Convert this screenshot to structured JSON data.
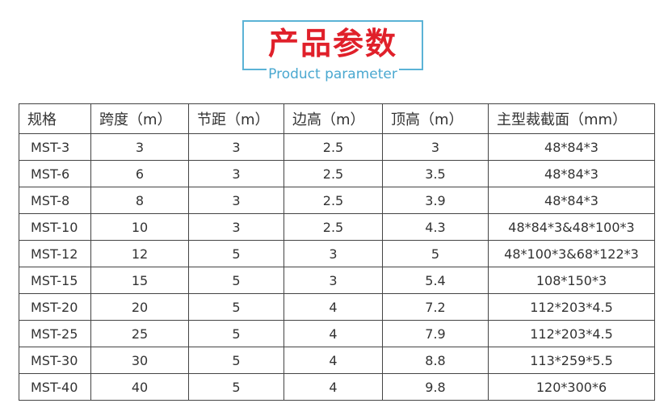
{
  "title": "产品参数",
  "subtitle": "Product parameter",
  "table": {
    "headers": [
      "规格",
      "跨度（m）",
      "节距（m）",
      "边高（m）",
      "顶高（m）",
      "主型裁截面（mm）"
    ],
    "rows": [
      [
        "MST-3",
        "3",
        "3",
        "2.5",
        "3",
        "48*84*3"
      ],
      [
        "MST-6",
        "6",
        "3",
        "2.5",
        "3.5",
        "48*84*3"
      ],
      [
        "MST-8",
        "8",
        "3",
        "2.5",
        "3.9",
        "48*84*3"
      ],
      [
        "MST-10",
        "10",
        "3",
        "2.5",
        "4.3",
        "48*84*3&48*100*3"
      ],
      [
        "MST-12",
        "12",
        "5",
        "3",
        "5",
        "48*100*3&68*122*3"
      ],
      [
        "MST-15",
        "15",
        "5",
        "3",
        "5.4",
        "108*150*3"
      ],
      [
        "MST-20",
        "20",
        "5",
        "4",
        "7.2",
        "112*203*4.5"
      ],
      [
        "MST-25",
        "25",
        "5",
        "4",
        "7.9",
        "112*203*4.5"
      ],
      [
        "MST-30",
        "30",
        "5",
        "4",
        "8.8",
        "113*259*5.5"
      ],
      [
        "MST-40",
        "40",
        "5",
        "4",
        "9.8",
        "120*300*6"
      ]
    ]
  }
}
